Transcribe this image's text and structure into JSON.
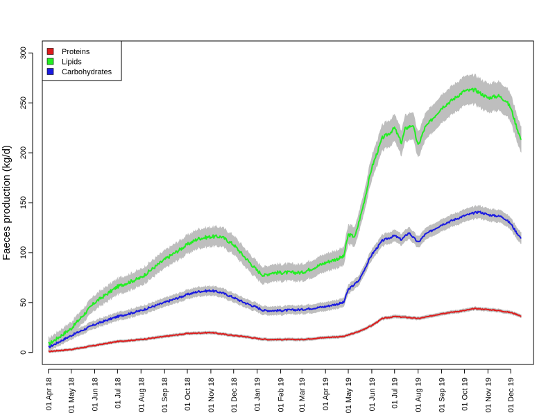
{
  "chart_data": {
    "type": "line",
    "ylabel": "Faeces production (kg/d)",
    "xlabel": "",
    "title": "",
    "ylim": [
      -12,
      312
    ],
    "xlim": [
      "2018-03-24",
      "2019-12-31"
    ],
    "y_ticks": [
      0,
      50,
      100,
      150,
      200,
      250,
      300
    ],
    "x_ticks": [
      {
        "date": "2018-04-01",
        "label": "01 Apr 18"
      },
      {
        "date": "2018-05-01",
        "label": "01 May 18"
      },
      {
        "date": "2018-06-01",
        "label": "01 Jun 18"
      },
      {
        "date": "2018-07-01",
        "label": "01 Jul 18"
      },
      {
        "date": "2018-08-01",
        "label": "01 Aug 18"
      },
      {
        "date": "2018-09-01",
        "label": "01 Sep 18"
      },
      {
        "date": "2018-10-01",
        "label": "01 Oct 18"
      },
      {
        "date": "2018-11-01",
        "label": "01 Nov 18"
      },
      {
        "date": "2018-12-01",
        "label": "01 Dec 18"
      },
      {
        "date": "2019-01-01",
        "label": "01 Jan 19"
      },
      {
        "date": "2019-02-01",
        "label": "01 Feb 19"
      },
      {
        "date": "2019-03-01",
        "label": "01 Mar 19"
      },
      {
        "date": "2019-04-01",
        "label": "01 Apr 19"
      },
      {
        "date": "2019-05-01",
        "label": "01 May 19"
      },
      {
        "date": "2019-06-01",
        "label": "01 Jun 19"
      },
      {
        "date": "2019-07-01",
        "label": "01 Jul 19"
      },
      {
        "date": "2019-08-01",
        "label": "01 Aug 19"
      },
      {
        "date": "2019-09-01",
        "label": "01 Sep 19"
      },
      {
        "date": "2019-10-01",
        "label": "01 Oct 19"
      },
      {
        "date": "2019-11-01",
        "label": "01 Nov 19"
      },
      {
        "date": "2019-12-01",
        "label": "01 Dec 19"
      }
    ],
    "legend_position": "top-left",
    "band_color": "#bebebe",
    "series": [
      {
        "name": "Proteins",
        "color": "#dd1c1c",
        "band": 2.5,
        "x": [
          "2018-04-01",
          "2018-05-01",
          "2018-06-01",
          "2018-07-01",
          "2018-08-01",
          "2018-09-01",
          "2018-10-01",
          "2018-11-01",
          "2018-12-01",
          "2018-12-15",
          "2019-01-01",
          "2019-01-15",
          "2019-02-01",
          "2019-03-01",
          "2019-04-01",
          "2019-04-25",
          "2019-05-15",
          "2019-06-01",
          "2019-06-15",
          "2019-07-01",
          "2019-07-20",
          "2019-08-01",
          "2019-08-15",
          "2019-09-01",
          "2019-10-01",
          "2019-10-15",
          "2019-11-01",
          "2019-11-15",
          "2019-12-01",
          "2019-12-10",
          "2019-12-15"
        ],
        "values": [
          1,
          3,
          7,
          11,
          13,
          16,
          19,
          20,
          17,
          16,
          14,
          13,
          13,
          13,
          15,
          16,
          21,
          27,
          34,
          36,
          35,
          34,
          36,
          39,
          42,
          44,
          43,
          42,
          40,
          38,
          36
        ]
      },
      {
        "name": "Lipids",
        "color": "#22ee22",
        "band": 10,
        "x": [
          "2018-04-01",
          "2018-05-01",
          "2018-06-01",
          "2018-07-01",
          "2018-08-01",
          "2018-09-01",
          "2018-10-01",
          "2018-10-15",
          "2018-11-01",
          "2018-11-15",
          "2018-12-01",
          "2018-12-15",
          "2019-01-01",
          "2019-01-10",
          "2019-01-20",
          "2019-02-01",
          "2019-03-01",
          "2019-03-20",
          "2019-04-01",
          "2019-04-25",
          "2019-05-01",
          "2019-05-10",
          "2019-05-20",
          "2019-06-01",
          "2019-06-15",
          "2019-06-25",
          "2019-07-01",
          "2019-07-10",
          "2019-07-15",
          "2019-07-25",
          "2019-08-01",
          "2019-08-10",
          "2019-09-01",
          "2019-10-01",
          "2019-10-15",
          "2019-11-01",
          "2019-11-15",
          "2019-11-25",
          "2019-12-01",
          "2019-12-08",
          "2019-12-15"
        ],
        "values": [
          8,
          24,
          50,
          66,
          75,
          93,
          108,
          114,
          116,
          116,
          108,
          96,
          82,
          77,
          80,
          80,
          80,
          86,
          90,
          96,
          118,
          116,
          145,
          185,
          215,
          220,
          225,
          210,
          224,
          228,
          207,
          225,
          245,
          262,
          263,
          255,
          257,
          252,
          245,
          228,
          212
        ]
      },
      {
        "name": "Carbohydrates",
        "color": "#1a1ae0",
        "band": 6,
        "x": [
          "2018-04-01",
          "2018-05-01",
          "2018-06-01",
          "2018-07-01",
          "2018-08-01",
          "2018-09-01",
          "2018-10-01",
          "2018-10-15",
          "2018-11-01",
          "2018-11-15",
          "2018-12-01",
          "2018-12-15",
          "2019-01-01",
          "2019-01-10",
          "2019-02-01",
          "2019-03-01",
          "2019-04-01",
          "2019-04-25",
          "2019-05-01",
          "2019-05-15",
          "2019-06-01",
          "2019-06-15",
          "2019-07-01",
          "2019-07-10",
          "2019-07-20",
          "2019-08-01",
          "2019-08-10",
          "2019-09-01",
          "2019-10-01",
          "2019-10-20",
          "2019-11-01",
          "2019-11-20",
          "2019-12-01",
          "2019-12-08",
          "2019-12-15"
        ],
        "values": [
          5,
          17,
          28,
          36,
          42,
          50,
          58,
          61,
          62,
          60,
          55,
          50,
          45,
          42,
          42,
          43,
          46,
          50,
          63,
          72,
          98,
          112,
          117,
          113,
          120,
          110,
          118,
          128,
          137,
          141,
          138,
          136,
          129,
          121,
          114
        ]
      }
    ]
  }
}
